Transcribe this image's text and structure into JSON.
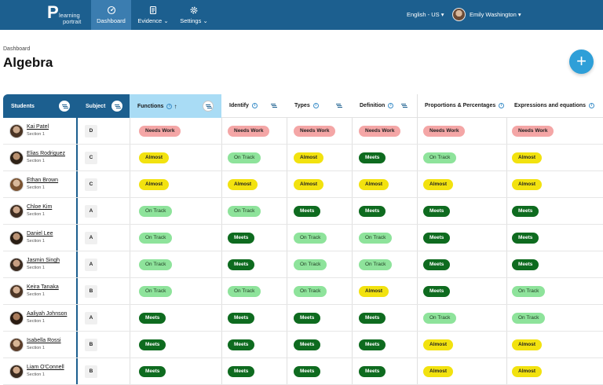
{
  "nav": {
    "logo_mark": "P",
    "logo_line1": "learning",
    "logo_line2": "portrait",
    "items": [
      {
        "label": "Dashboard",
        "icon": "dashboard-icon"
      },
      {
        "label": "Evidence",
        "icon": "evidence-icon"
      },
      {
        "label": "Settings",
        "icon": "gear-icon"
      }
    ],
    "language": "English - US",
    "user_name": "Emily Washington"
  },
  "page": {
    "breadcrumb": "Dashboard",
    "title": "Algebra",
    "add_button": "+"
  },
  "table": {
    "columns": {
      "students": "Students",
      "subject": "Subject",
      "functions": "Functions",
      "identify": "Identify",
      "types": "Types",
      "definition": "Definition",
      "proportions": "Proportions & Percentages",
      "expressions": "Expressions and equations"
    },
    "rows": [
      {
        "name": "Kai Patel",
        "section": "Section 1",
        "grade": "D",
        "s": [
          "Needs Work",
          "Needs Work",
          "Needs Work",
          "Needs Work",
          "Needs Work",
          "Needs Work"
        ]
      },
      {
        "name": "Elias Rodriguez",
        "section": "Section 1",
        "grade": "C",
        "s": [
          "Almost",
          "On Track",
          "Almost",
          "Meets",
          "On Track",
          "Almost"
        ]
      },
      {
        "name": "Ethan Brown",
        "section": "Section 1",
        "grade": "C",
        "s": [
          "Almost",
          "Almost",
          "Almost",
          "Almost",
          "Almost",
          "Almost"
        ]
      },
      {
        "name": "Chloe Kim",
        "section": "Section 1",
        "grade": "A",
        "s": [
          "On Track",
          "On Track",
          "Meets",
          "Meets",
          "Meets",
          "Meets"
        ]
      },
      {
        "name": "Daniel Lee",
        "section": "Section 1",
        "grade": "A",
        "s": [
          "On Track",
          "Meets",
          "On Track",
          "On Track",
          "Meets",
          "Meets"
        ]
      },
      {
        "name": "Jasmin Singh",
        "section": "Section 1",
        "grade": "A",
        "s": [
          "On Track",
          "Meets",
          "On Track",
          "On Track",
          "Meets",
          "Meets"
        ]
      },
      {
        "name": "Keira Tanaka",
        "section": "Section 1",
        "grade": "B",
        "s": [
          "On Track",
          "On Track",
          "On Track",
          "Almost",
          "Meets",
          "On Track"
        ]
      },
      {
        "name": "Aaliyah Johnson",
        "section": "Section 1",
        "grade": "A",
        "s": [
          "Meets",
          "Meets",
          "Meets",
          "Meets",
          "On Track",
          "On Track"
        ]
      },
      {
        "name": "Isabella Rossi",
        "section": "Section 1",
        "grade": "B",
        "s": [
          "Meets",
          "Meets",
          "Meets",
          "Meets",
          "Almost",
          "Almost"
        ]
      },
      {
        "name": "Liam O'Connell",
        "section": "Section 1",
        "grade": "B",
        "s": [
          "Meets",
          "Meets",
          "Meets",
          "Meets",
          "Almost",
          "Almost"
        ]
      }
    ]
  },
  "colors": {
    "nav_bg": "#1c5f8f",
    "needs_work": "#f4a6a6",
    "almost": "#f2e20f",
    "on_track": "#8ee39b",
    "meets": "#0e6b1f",
    "accent": "#2e9fd8"
  }
}
